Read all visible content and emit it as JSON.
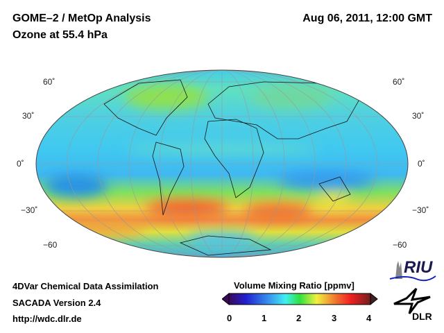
{
  "header": {
    "title": "GOME–2 / MetOp Analysis",
    "subtitle": "Ozone at 55.4 hPa",
    "datetime": "Aug 06, 2011, 12:00 GMT"
  },
  "map": {
    "projection": "Hammer/Mollweide global",
    "lat_labels": [
      "60˚",
      "30˚",
      "0˚",
      "−30˚",
      "−60"
    ]
  },
  "footer": {
    "line1": "4DVar Chemical Data Assimilation",
    "line2": "SACADA Version 2.4",
    "line3": "http://wdc.dlr.de"
  },
  "colorbar": {
    "title": "Volume Mixing Ratio [ppmv]",
    "ticks": [
      "0",
      "1",
      "2",
      "3",
      "4"
    ],
    "min": 0,
    "max": 4,
    "colors": [
      "#3a0a5a",
      "#2020d0",
      "#3aa0f0",
      "#40f0f0",
      "#30e040",
      "#f0f040",
      "#f07030",
      "#f02020",
      "#702020"
    ]
  },
  "logos": {
    "riu": "RIU",
    "dlr": "DLR"
  }
}
